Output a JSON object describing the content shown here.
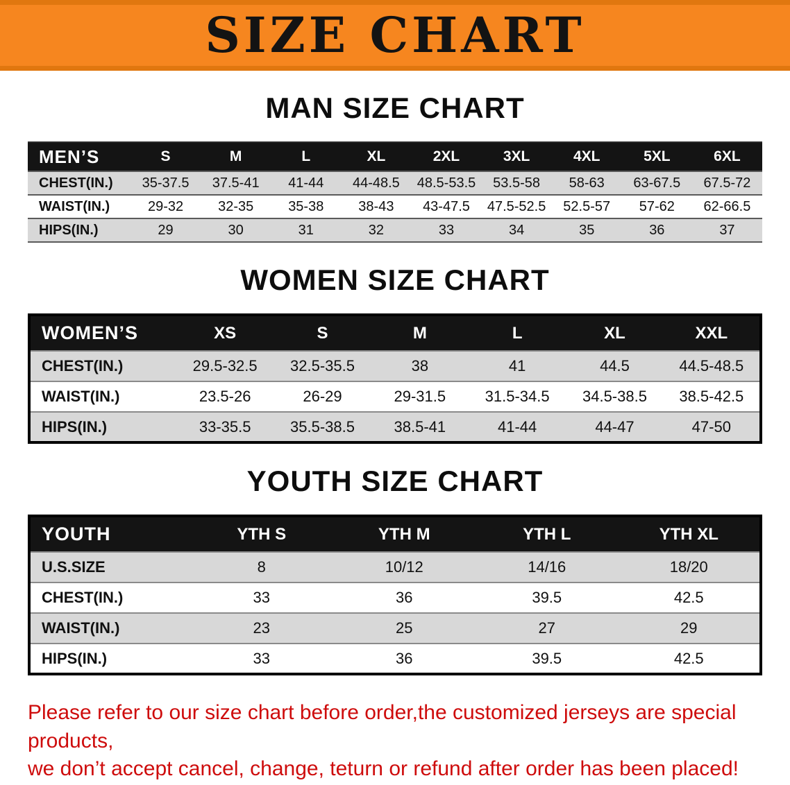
{
  "banner": {
    "title": "SIZE CHART"
  },
  "sections": [
    {
      "heading": "MAN SIZE CHART",
      "table": {
        "name": "men-size-table",
        "header": [
          "MEN’S",
          "S",
          "M",
          "L",
          "XL",
          "2XL",
          "3XL",
          "4XL",
          "5XL",
          "6XL"
        ],
        "rows": [
          [
            "CHEST(IN.)",
            "35-37.5",
            "37.5-41",
            "41-44",
            "44-48.5",
            "48.5-53.5",
            "53.5-58",
            "58-63",
            "63-67.5",
            "67.5-72"
          ],
          [
            "WAIST(IN.)",
            "29-32",
            "32-35",
            "35-38",
            "38-43",
            "43-47.5",
            "47.5-52.5",
            "52.5-57",
            "57-62",
            "62-66.5"
          ],
          [
            "HIPS(IN.)",
            "29",
            "30",
            "31",
            "32",
            "33",
            "34",
            "35",
            "36",
            "37"
          ]
        ]
      }
    },
    {
      "heading": "WOMEN SIZE CHART",
      "table": {
        "name": "women-size-table",
        "header": [
          "WOMEN’S",
          "XS",
          "S",
          "M",
          "L",
          "XL",
          "XXL"
        ],
        "rows": [
          [
            "CHEST(IN.)",
            "29.5-32.5",
            "32.5-35.5",
            "38",
            "41",
            "44.5",
            "44.5-48.5"
          ],
          [
            "WAIST(IN.)",
            "23.5-26",
            "26-29",
            "29-31.5",
            "31.5-34.5",
            "34.5-38.5",
            "38.5-42.5"
          ],
          [
            "HIPS(IN.)",
            "33-35.5",
            "35.5-38.5",
            "38.5-41",
            "41-44",
            "44-47",
            "47-50"
          ]
        ]
      }
    },
    {
      "heading": "YOUTH SIZE CHART",
      "table": {
        "name": "youth-size-table",
        "header": [
          "YOUTH",
          "YTH S",
          "YTH M",
          "YTH L",
          "YTH XL"
        ],
        "rows": [
          [
            "U.S.SIZE",
            "8",
            "10/12",
            "14/16",
            "18/20"
          ],
          [
            "CHEST(IN.)",
            "33",
            "36",
            "39.5",
            "42.5"
          ],
          [
            "WAIST(IN.)",
            "23",
            "25",
            "27",
            "29"
          ],
          [
            "HIPS(IN.)",
            "33",
            "36",
            "39.5",
            "42.5"
          ]
        ]
      }
    }
  ],
  "footer": {
    "line1": "Please refer to our size chart before order,the customized jerseys are special products,",
    "line2": "we don’t accept cancel, change, teturn or refund after order has been placed!"
  },
  "colors": {
    "banner-orange": "#f6861f",
    "banner-edge": "#e0770f",
    "header-black": "#141414",
    "stripe-gray": "#d8d8d8",
    "notice-red": "#ce0c0c"
  }
}
